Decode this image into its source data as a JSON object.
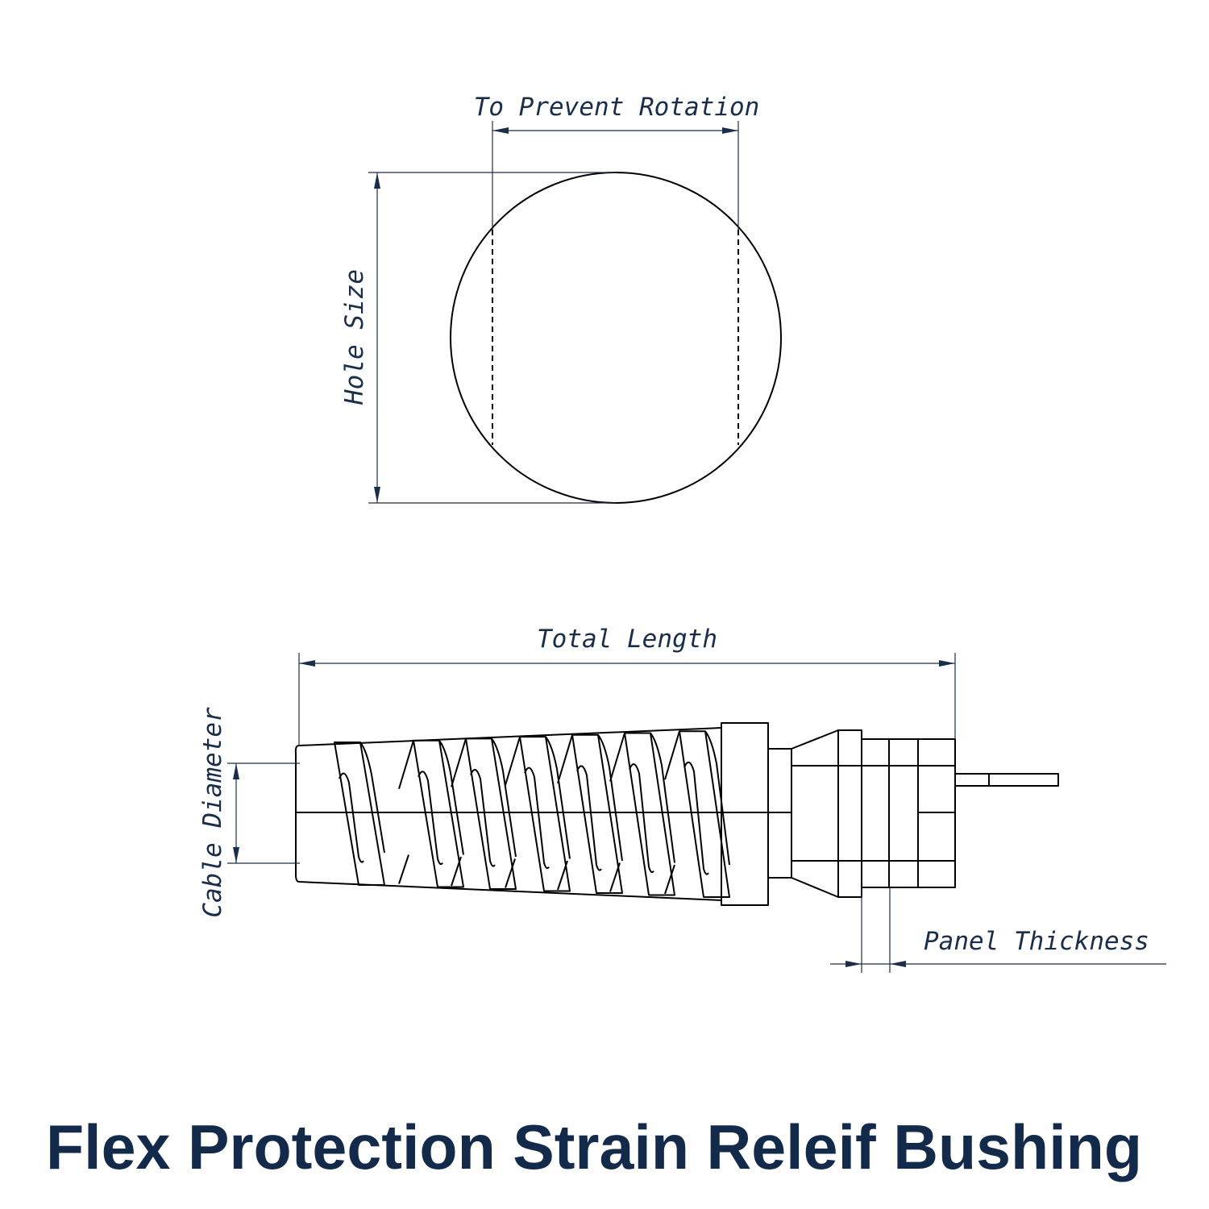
{
  "title": "Flex Protection Strain Releif Bushing",
  "labels": {
    "prevent_rotation": "To Prevent Rotation",
    "hole_size": "Hole Size",
    "total_length": "Total Length",
    "cable_diameter": "Cable Diameter",
    "panel_thickness": "Panel Thickness"
  },
  "colors": {
    "dimension": "#1a2e4a",
    "title": "#132a4a",
    "part_outline": "#000000"
  }
}
